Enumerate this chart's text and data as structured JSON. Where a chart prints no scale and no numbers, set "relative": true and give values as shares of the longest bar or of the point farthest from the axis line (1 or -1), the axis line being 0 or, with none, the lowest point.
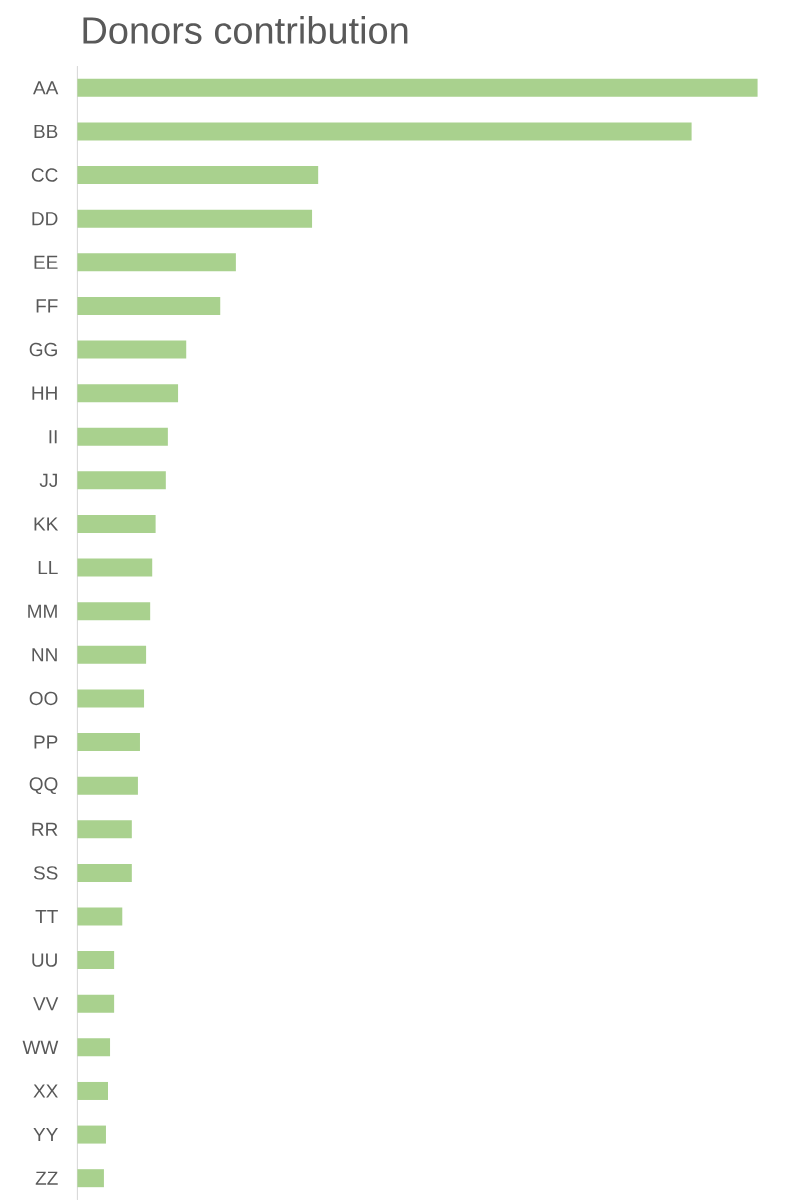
{
  "chart_data": {
    "type": "bar",
    "orientation": "horizontal",
    "relative": true,
    "title": "Donors contribution",
    "categories": [
      "AA",
      "BB",
      "CC",
      "DD",
      "EE",
      "FF",
      "GG",
      "HH",
      "II",
      "JJ",
      "KK",
      "LL",
      "MM",
      "NN",
      "OO",
      "PP",
      "QQ",
      "RR",
      "SS",
      "TT",
      "UU",
      "VV",
      "WW",
      "XX",
      "YY",
      "ZZ"
    ],
    "values": [
      1,
      0.903,
      0.354,
      0.345,
      0.233,
      0.21,
      0.16,
      0.148,
      0.133,
      0.13,
      0.115,
      0.11,
      0.107,
      0.101,
      0.098,
      0.092,
      0.089,
      0.08,
      0.08,
      0.066,
      0.054,
      0.054,
      0.048,
      0.045,
      0.042,
      0.039
    ],
    "color": "#a9d18e"
  }
}
